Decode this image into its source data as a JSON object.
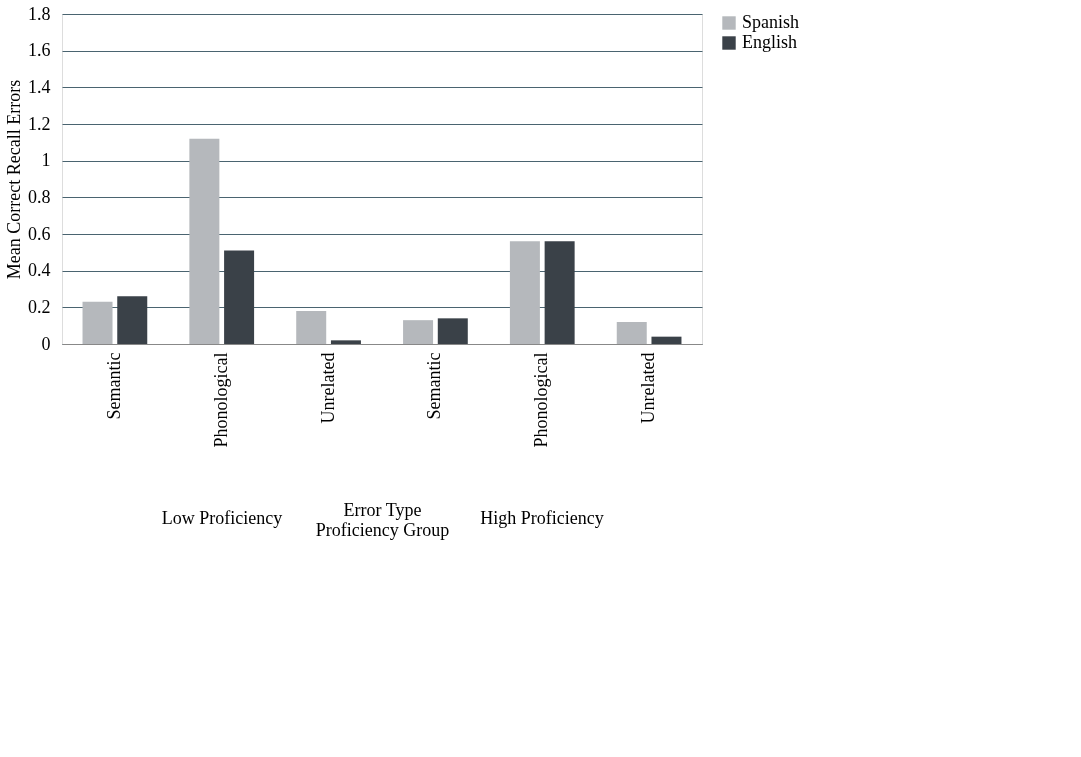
{
  "chart_data": {
    "type": "bar",
    "xlabel": "Error Type\nProficiency Group",
    "ylabel": "Mean Correct Recall Errors",
    "categories": [
      "Semantic",
      "Phonological",
      "Unrelated",
      "Semantic",
      "Phonological",
      "Unrelated"
    ],
    "series": [
      {
        "name": "Spanish",
        "color": "#b5b8bc",
        "values": [
          0.23,
          1.12,
          0.18,
          0.13,
          0.56,
          0.12
        ]
      },
      {
        "name": "English",
        "color": "#3a4148",
        "values": [
          0.26,
          0.51,
          0.02,
          0.14,
          0.56,
          0.04
        ]
      }
    ],
    "annotations": [
      "Low Proficiency",
      "High Proficiency"
    ],
    "ylim": [
      0,
      1.8
    ],
    "yticks": [
      0,
      0.2,
      0.4,
      0.6,
      0.8,
      1,
      1.2,
      1.4,
      1.6,
      1.8
    ],
    "grid": "y",
    "legend": "right"
  }
}
